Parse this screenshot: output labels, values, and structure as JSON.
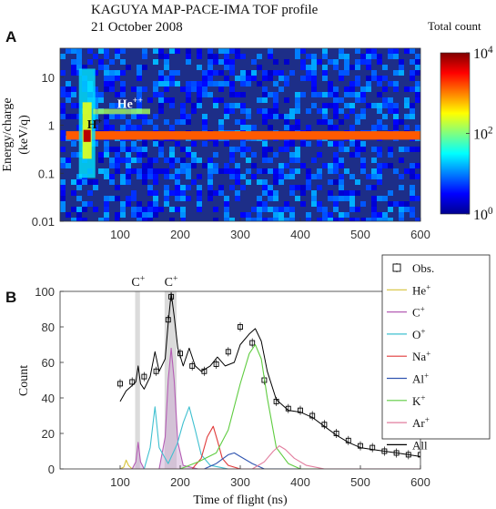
{
  "figure": {
    "title_line1": "KAGUYA MAP-PACE-IMA TOF profile",
    "title_line2": "21 October 2008"
  },
  "chart_data": [
    {
      "panel": "A",
      "type": "heatmap",
      "xlim": [
        0,
        600
      ],
      "x_ticks": [
        100,
        200,
        300,
        400,
        500,
        600
      ],
      "y_scale": "log",
      "ylim": [
        0.01,
        40
      ],
      "y_ticks": [
        {
          "v": 0.01,
          "t": "0.01"
        },
        {
          "v": 0.1,
          "t": "0.1"
        },
        {
          "v": 1,
          "t": "1"
        },
        {
          "v": 10,
          "t": "10"
        }
      ],
      "ylabel_line1": "Energy/charge",
      "ylabel_line2": "(keV/q)",
      "colorbar": {
        "label": "Total count",
        "scale": "log",
        "range": [
          1,
          10000
        ],
        "ticks": [
          {
            "v": 1,
            "base": "10",
            "exp": "0"
          },
          {
            "v": 100,
            "base": "10",
            "exp": "2"
          },
          {
            "v": 10000,
            "base": "10",
            "exp": "4"
          }
        ]
      },
      "features": [
        {
          "name": "H-band",
          "energy_range": [
            0.5,
            0.75
          ],
          "tof_range": [
            10,
            600
          ],
          "level": 1400
        },
        {
          "name": "H-peak",
          "tof": 45,
          "energy_range": [
            0.08,
            15
          ],
          "level": 6000
        },
        {
          "name": "He-band",
          "energy_range": [
            1.7,
            2.2
          ],
          "tof_range": [
            55,
            150
          ],
          "level": 140
        }
      ],
      "annotations": [
        {
          "base": "H",
          "sup": "+",
          "x": 45,
          "y": 0.85,
          "color": "#111111"
        },
        {
          "base": "He",
          "sup": "++",
          "x": 95,
          "y": 2.3,
          "color": "#ffffff"
        }
      ]
    },
    {
      "panel": "B",
      "type": "line",
      "xlim": [
        0,
        600
      ],
      "ylim": [
        0,
        100
      ],
      "x_ticks": [
        100,
        200,
        300,
        400,
        500,
        600
      ],
      "y_ticks": [
        0,
        20,
        40,
        60,
        80,
        100
      ],
      "xlabel": "Time of flight (ns)",
      "ylabel": "Count",
      "legend_position": "top-right",
      "marker_labels": [
        {
          "base": "C",
          "sup": "+",
          "x": 130
        },
        {
          "base": "C",
          "sup": "+",
          "x": 185
        }
      ],
      "bands": [
        {
          "x": [
            125,
            133
          ],
          "color": "#bdbdbd"
        },
        {
          "x": [
            174,
            194
          ],
          "color": "#bdbdbd"
        }
      ],
      "series": [
        {
          "name": "Obs.",
          "sup": "",
          "color": "#000000",
          "style": "marker",
          "x": [
            100,
            120,
            140,
            160,
            180,
            185,
            200,
            220,
            240,
            260,
            280,
            300,
            320,
            340,
            360,
            380,
            400,
            420,
            440,
            460,
            480,
            500,
            520,
            540,
            560,
            580,
            600
          ],
          "y": [
            48,
            49,
            52,
            55,
            84,
            97,
            65,
            58,
            55,
            59,
            66,
            80,
            71,
            50,
            38,
            34,
            33,
            30,
            25,
            20,
            16,
            13,
            12,
            10,
            9,
            8,
            8
          ]
        },
        {
          "name": "He",
          "sup": "+",
          "color": "#d6c33a",
          "style": "line",
          "x": [
            100,
            106,
            110,
            114,
            120,
            140,
            600
          ],
          "y": [
            0,
            1,
            5,
            2,
            0,
            0,
            0
          ]
        },
        {
          "name": "C",
          "sup": "+",
          "color": "#b45db4",
          "style": "line",
          "x": [
            100,
            120,
            126,
            130,
            134,
            140,
            165,
            175,
            180,
            185,
            190,
            196,
            205,
            230,
            600
          ],
          "y": [
            0,
            0,
            4,
            15,
            4,
            0,
            0,
            18,
            50,
            68,
            50,
            15,
            2,
            0,
            0
          ]
        },
        {
          "name": "O",
          "sup": "+",
          "color": "#3fc0d0",
          "style": "line",
          "x": [
            100,
            140,
            150,
            158,
            165,
            180,
            195,
            205,
            215,
            225,
            235,
            250,
            280,
            600
          ],
          "y": [
            0,
            0,
            12,
            35,
            12,
            3,
            14,
            26,
            35,
            22,
            8,
            2,
            0,
            0
          ]
        },
        {
          "name": "Na",
          "sup": "+",
          "color": "#e03a3a",
          "style": "line",
          "x": [
            100,
            220,
            235,
            245,
            255,
            262,
            270,
            280,
            300,
            320,
            600
          ],
          "y": [
            0,
            0,
            6,
            18,
            24,
            16,
            6,
            2,
            0,
            0,
            0
          ]
        },
        {
          "name": "Al",
          "sup": "+",
          "color": "#3055b0",
          "style": "line",
          "x": [
            100,
            240,
            260,
            280,
            290,
            300,
            320,
            340,
            600
          ],
          "y": [
            0,
            0,
            3,
            8,
            9,
            7,
            3,
            0,
            0
          ]
        },
        {
          "name": "K",
          "sup": "+",
          "color": "#5fcc40",
          "style": "line",
          "x": [
            100,
            200,
            230,
            260,
            280,
            300,
            315,
            325,
            335,
            345,
            360,
            380,
            400,
            600
          ],
          "y": [
            0,
            0,
            4,
            9,
            22,
            48,
            65,
            70,
            62,
            40,
            12,
            3,
            0,
            0
          ]
        },
        {
          "name": "Ar",
          "sup": "+",
          "color": "#e27d9e",
          "style": "line",
          "x": [
            100,
            320,
            340,
            355,
            365,
            375,
            390,
            410,
            440,
            460,
            600
          ],
          "y": [
            0,
            0,
            4,
            10,
            13,
            11,
            6,
            2,
            0,
            0,
            0
          ]
        },
        {
          "name": "All",
          "sup": "",
          "color": "#000000",
          "style": "line",
          "x": [
            100,
            110,
            120,
            126,
            130,
            134,
            140,
            150,
            158,
            165,
            175,
            180,
            185,
            190,
            196,
            205,
            215,
            225,
            235,
            250,
            262,
            275,
            290,
            300,
            315,
            325,
            335,
            345,
            360,
            380,
            400,
            420,
            440,
            460,
            480,
            500,
            520,
            540,
            560,
            580,
            600
          ],
          "y": [
            38,
            44,
            47,
            49,
            58,
            48,
            45,
            52,
            66,
            55,
            62,
            82,
            99,
            86,
            68,
            58,
            68,
            58,
            55,
            58,
            63,
            58,
            60,
            70,
            76,
            79,
            72,
            55,
            39,
            33,
            32,
            29,
            24,
            19,
            15,
            12,
            11,
            10,
            9,
            8,
            7
          ]
        }
      ]
    }
  ]
}
